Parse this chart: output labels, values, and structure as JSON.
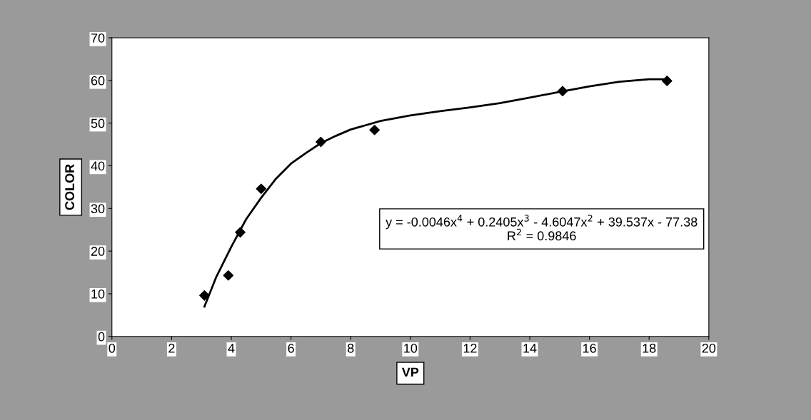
{
  "chart_data": {
    "type": "scatter",
    "xlabel": "VP",
    "ylabel": "COLOR",
    "xlim": [
      0,
      20
    ],
    "xticks": [
      0,
      2,
      4,
      6,
      8,
      10,
      12,
      14,
      16,
      18,
      20
    ],
    "ylim": [
      0,
      70
    ],
    "yticks": [
      0,
      10,
      20,
      30,
      40,
      50,
      60,
      70
    ],
    "grid": false,
    "legend": false,
    "marker": "diamond",
    "series": [
      {
        "color": "#000000",
        "x": [
          3.1,
          3.9,
          4.3,
          5.0,
          7.0,
          8.8,
          15.1,
          18.6
        ],
        "values": [
          9.6,
          14.3,
          24.4,
          34.6,
          45.6,
          48.4,
          57.5,
          59.9
        ]
      },
      {
        "type": "line",
        "color": "#000000",
        "marker": "none",
        "line_style": "solid",
        "x": [
          3.1,
          3.5,
          4,
          4.5,
          5,
          5.5,
          6,
          6.5,
          7,
          7.5,
          8,
          9,
          10,
          11,
          12,
          13,
          14,
          15,
          16,
          17,
          18,
          18.5
        ],
        "values": [
          7,
          14,
          21,
          27.5,
          32.5,
          37,
          40.5,
          43,
          45.3,
          47,
          48.5,
          50.5,
          51.8,
          52.8,
          53.7,
          54.7,
          56,
          57.3,
          58.6,
          59.7,
          60.3,
          60.3
        ]
      }
    ],
    "annotations": [
      "y = -0.0046x$^{4}$ + 0.2405x$^{3}$ - 4.6047x$^{2}$ + 39.537x - 77.38\nR$^{2}$ = 0.9846"
    ]
  }
}
